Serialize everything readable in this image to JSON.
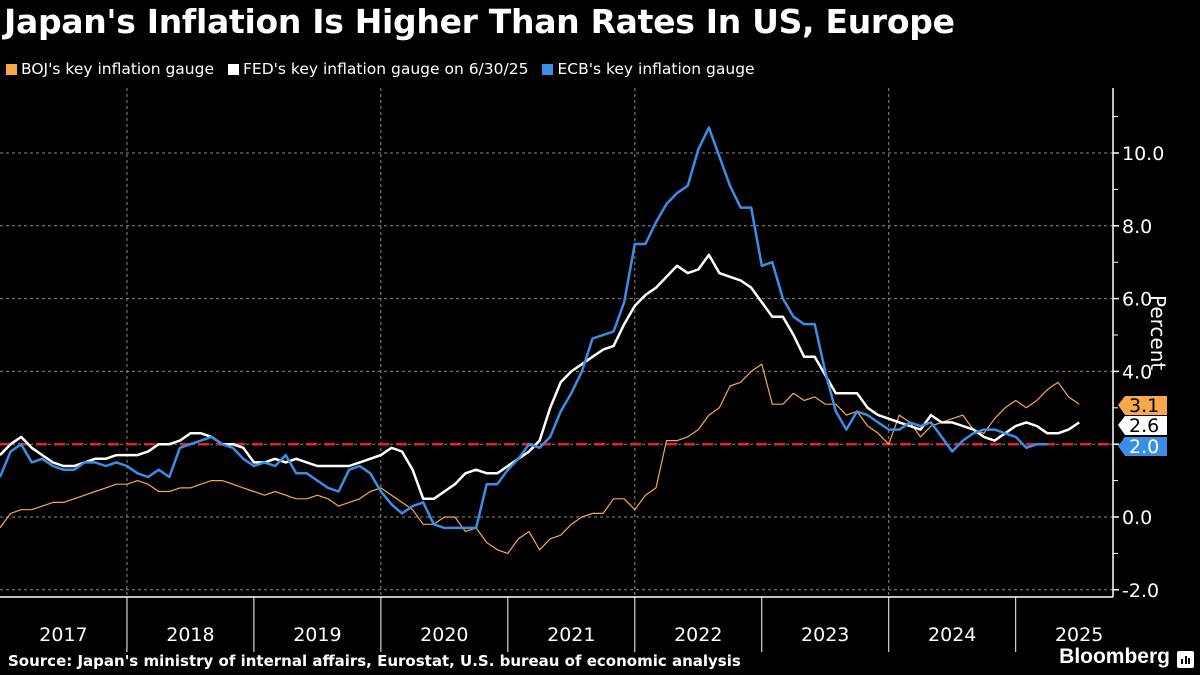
{
  "title": "Japan's Inflation Is Higher Than Rates In US, Europe",
  "source": "Source: Japan's ministry of internal affairs, Eurostat, U.S. bureau of economic analysis",
  "brand": "Bloomberg",
  "chart_data": {
    "type": "line",
    "title": "Japan's Inflation Is Higher Than Rates In US, Europe",
    "xlabel": "",
    "ylabel": "Percent",
    "ylim": [
      -2.0,
      11.8
    ],
    "yticks": [
      -2.0,
      0.0,
      2.0,
      4.0,
      6.0,
      8.0,
      10.0
    ],
    "ytick_labels": [
      "-2.0",
      "0.0",
      "2.0",
      "4.0",
      "6.0",
      "8.0",
      "10.0"
    ],
    "x_start": "2017-01",
    "x_frequency": "monthly",
    "x_tick_labels": [
      "2017",
      "2018",
      "2019",
      "2020",
      "2021",
      "2022",
      "2023",
      "2024",
      "2025"
    ],
    "grid": true,
    "legend_placement": "top-left",
    "reference_line": {
      "value": 2.0,
      "style": "dashed",
      "color": "#e8202a"
    },
    "series": [
      {
        "name": "BOJ's key inflation gauge",
        "color": "#f7a84a",
        "last_value_label": "3.1",
        "values": [
          -0.3,
          0.1,
          0.2,
          0.2,
          0.3,
          0.4,
          0.4,
          0.5,
          0.6,
          0.7,
          0.8,
          0.9,
          0.9,
          1.0,
          0.9,
          0.7,
          0.7,
          0.8,
          0.8,
          0.9,
          1.0,
          1.0,
          0.9,
          0.8,
          0.7,
          0.6,
          0.7,
          0.6,
          0.5,
          0.5,
          0.6,
          0.5,
          0.3,
          0.4,
          0.5,
          0.7,
          0.8,
          0.6,
          0.4,
          0.2,
          -0.2,
          -0.2,
          0.0,
          0.0,
          -0.4,
          -0.3,
          -0.7,
          -0.9,
          -1.0,
          -0.6,
          -0.4,
          -0.9,
          -0.6,
          -0.5,
          -0.2,
          0.0,
          0.1,
          0.1,
          0.5,
          0.5,
          0.2,
          0.6,
          0.8,
          2.1,
          2.1,
          2.2,
          2.4,
          2.8,
          3.0,
          3.6,
          3.7,
          4.0,
          4.2,
          3.1,
          3.1,
          3.4,
          3.2,
          3.3,
          3.1,
          3.1,
          2.8,
          2.9,
          2.5,
          2.3,
          2.0,
          2.8,
          2.6,
          2.2,
          2.5,
          2.6,
          2.7,
          2.8,
          2.4,
          2.3,
          2.7,
          3.0,
          3.2,
          3.0,
          3.2,
          3.5,
          3.7,
          3.3,
          3.1
        ]
      },
      {
        "name": "FED's key inflation gauge on 6/30/25",
        "color": "#ffffff",
        "last_value_label": "2.6",
        "values": [
          1.7,
          2.0,
          2.2,
          1.9,
          1.7,
          1.5,
          1.4,
          1.4,
          1.5,
          1.6,
          1.6,
          1.7,
          1.7,
          1.7,
          1.8,
          2.0,
          2.0,
          2.1,
          2.3,
          2.3,
          2.2,
          2.0,
          2.0,
          1.9,
          1.5,
          1.5,
          1.6,
          1.5,
          1.6,
          1.5,
          1.4,
          1.4,
          1.4,
          1.4,
          1.5,
          1.6,
          1.7,
          1.9,
          1.8,
          1.3,
          0.5,
          0.5,
          0.7,
          0.9,
          1.2,
          1.3,
          1.2,
          1.2,
          1.4,
          1.6,
          1.8,
          2.1,
          3.0,
          3.7,
          4.0,
          4.2,
          4.4,
          4.6,
          4.7,
          5.3,
          5.8,
          6.1,
          6.3,
          6.6,
          6.9,
          6.7,
          6.8,
          7.2,
          6.7,
          6.6,
          6.5,
          6.3,
          5.9,
          5.5,
          5.5,
          5.0,
          4.4,
          4.4,
          3.9,
          3.4,
          3.4,
          3.4,
          3.0,
          2.8,
          2.7,
          2.6,
          2.5,
          2.4,
          2.8,
          2.6,
          2.6,
          2.5,
          2.4,
          2.2,
          2.1,
          2.3,
          2.5,
          2.6,
          2.5,
          2.3,
          2.3,
          2.4,
          2.6
        ]
      },
      {
        "name": "ECB's key inflation gauge",
        "color": "#3a8ee6",
        "last_value_label": "2.0",
        "values": [
          1.1,
          1.8,
          2.0,
          1.5,
          1.6,
          1.4,
          1.3,
          1.3,
          1.5,
          1.5,
          1.4,
          1.5,
          1.4,
          1.2,
          1.1,
          1.3,
          1.1,
          1.9,
          2.0,
          2.1,
          2.2,
          2.0,
          1.9,
          1.6,
          1.4,
          1.5,
          1.4,
          1.7,
          1.2,
          1.2,
          1.0,
          0.8,
          0.7,
          1.3,
          1.4,
          1.2,
          0.7,
          0.35,
          0.1,
          0.3,
          0.4,
          -0.2,
          -0.3,
          -0.3,
          -0.3,
          -0.3,
          0.9,
          0.9,
          1.3,
          1.6,
          2.0,
          1.9,
          2.2,
          2.9,
          3.4,
          4.0,
          4.9,
          5.0,
          5.1,
          5.9,
          7.5,
          7.5,
          8.1,
          8.6,
          8.9,
          9.1,
          10.1,
          10.7,
          9.9,
          9.1,
          8.5,
          8.5,
          6.9,
          7.0,
          6.0,
          5.5,
          5.3,
          5.3,
          4.0,
          2.9,
          2.4,
          2.9,
          2.8,
          2.6,
          2.4,
          2.4,
          2.6,
          2.5,
          2.6,
          2.2,
          1.8,
          2.1,
          2.3,
          2.4,
          2.4,
          2.3,
          2.2,
          1.9,
          2.0,
          2.0
        ]
      }
    ]
  }
}
